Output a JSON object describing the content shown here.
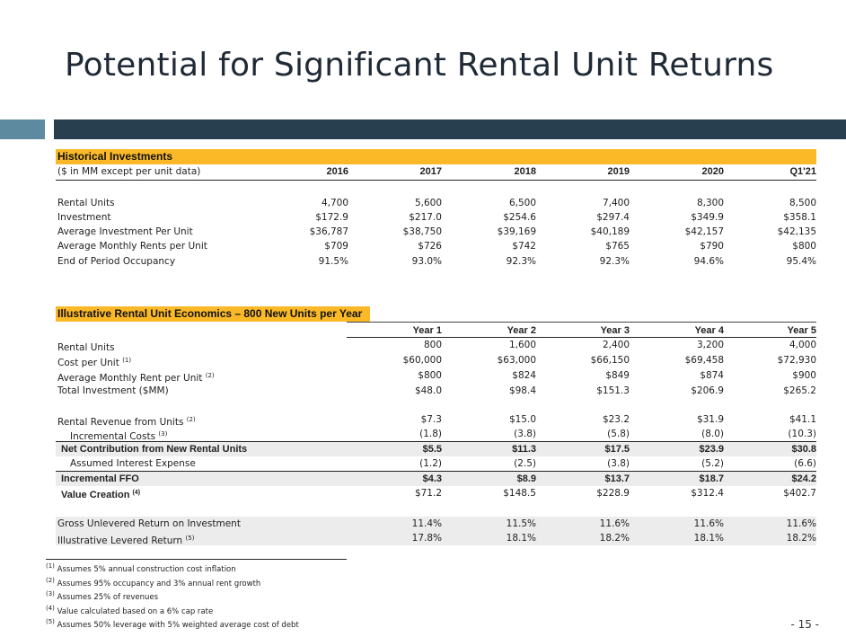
{
  "title": "Potential for Significant Rental Unit Returns",
  "historical": {
    "heading": "Historical Investments",
    "subheading": "($ in MM except per unit data)",
    "columns": [
      "2016",
      "2017",
      "2018",
      "2019",
      "2020",
      "Q1'21"
    ],
    "rows": [
      {
        "label": "Rental Units",
        "values": [
          "4,700",
          "5,600",
          "6,500",
          "7,400",
          "8,300",
          "8,500"
        ]
      },
      {
        "label": "Investment",
        "values": [
          "$172.9",
          "$217.0",
          "$254.6",
          "$297.4",
          "$349.9",
          "$358.1"
        ]
      },
      {
        "label": "Average Investment Per Unit",
        "values": [
          "$36,787",
          "$38,750",
          "$39,169",
          "$40,189",
          "$42,157",
          "$42,135"
        ]
      },
      {
        "label": "Average Monthly Rents per Unit",
        "values": [
          "$709",
          "$726",
          "$742",
          "$765",
          "$790",
          "$800"
        ]
      },
      {
        "label": "End of Period Occupancy",
        "values": [
          "91.5%",
          "93.0%",
          "92.3%",
          "92.3%",
          "94.6%",
          "95.4%"
        ]
      }
    ]
  },
  "illustrative": {
    "heading": "Illustrative Rental Unit Economics – 800 New Units per Year",
    "columns": [
      "Year 1",
      "Year 2",
      "Year 3",
      "Year 4",
      "Year 5"
    ],
    "group1": [
      {
        "label": "Rental Units",
        "note": "",
        "values": [
          "800",
          "1,600",
          "2,400",
          "3,200",
          "4,000"
        ]
      },
      {
        "label": "Cost per Unit",
        "note": "(1)",
        "values": [
          "$60,000",
          "$63,000",
          "$66,150",
          "$69,458",
          "$72,930"
        ]
      },
      {
        "label": "Average Monthly Rent per Unit",
        "note": "(2)",
        "values": [
          "$800",
          "$824",
          "$849",
          "$874",
          "$900"
        ]
      },
      {
        "label": "Total Investment ($MM)",
        "note": "",
        "values": [
          "$48.0",
          "$98.4",
          "$151.3",
          "$206.9",
          "$265.2"
        ]
      }
    ],
    "group2": [
      {
        "label": "Rental Revenue from Units",
        "note": "(2)",
        "values": [
          "$7.3",
          "$15.0",
          "$23.2",
          "$31.9",
          "$41.1"
        ]
      },
      {
        "label": "Incremental Costs",
        "note": "(3)",
        "values": [
          "(1.8)",
          "(3.8)",
          "(5.8)",
          "(8.0)",
          "(10.3)"
        ]
      },
      {
        "label": "Net Contribution from New Rental Units",
        "note": "",
        "values": [
          "$5.5",
          "$11.3",
          "$17.5",
          "$23.9",
          "$30.8"
        ]
      },
      {
        "label": "Assumed Interest Expense",
        "note": "",
        "values": [
          "(1.2)",
          "(2.5)",
          "(3.8)",
          "(5.2)",
          "(6.6)"
        ]
      },
      {
        "label": "Incremental FFO",
        "note": "",
        "values": [
          "$4.3",
          "$8.9",
          "$13.7",
          "$18.7",
          "$24.2"
        ]
      },
      {
        "label": "Value Creation",
        "note": "(4)",
        "values": [
          "$71.2",
          "$148.5",
          "$228.9",
          "$312.4",
          "$402.7"
        ]
      }
    ],
    "group3": [
      {
        "label": "Gross Unlevered Return on Investment",
        "note": "",
        "values": [
          "11.4%",
          "11.5%",
          "11.6%",
          "11.6%",
          "11.6%"
        ]
      },
      {
        "label": "Illustrative Levered Return",
        "note": "(5)",
        "values": [
          "17.8%",
          "18.1%",
          "18.2%",
          "18.1%",
          "18.2%"
        ]
      }
    ]
  },
  "footnotes": [
    {
      "mark": "(1)",
      "text": "Assumes 5% annual construction cost inflation"
    },
    {
      "mark": "(2)",
      "text": "Assumes 95% occupancy and 3% annual rent growth"
    },
    {
      "mark": "(3)",
      "text": "Assumes 25% of revenues"
    },
    {
      "mark": "(4)",
      "text": "Value calculated based on a 6% cap rate"
    },
    {
      "mark": "(5)",
      "text": "Assumes 50% leverage with 5% weighted average cost of debt"
    }
  ],
  "page_number": "- 15 -",
  "colors": {
    "section_header": "#fbb928",
    "band_dark": "#273f4e",
    "band_light": "#5e8aa0",
    "shade": "#ececec"
  }
}
